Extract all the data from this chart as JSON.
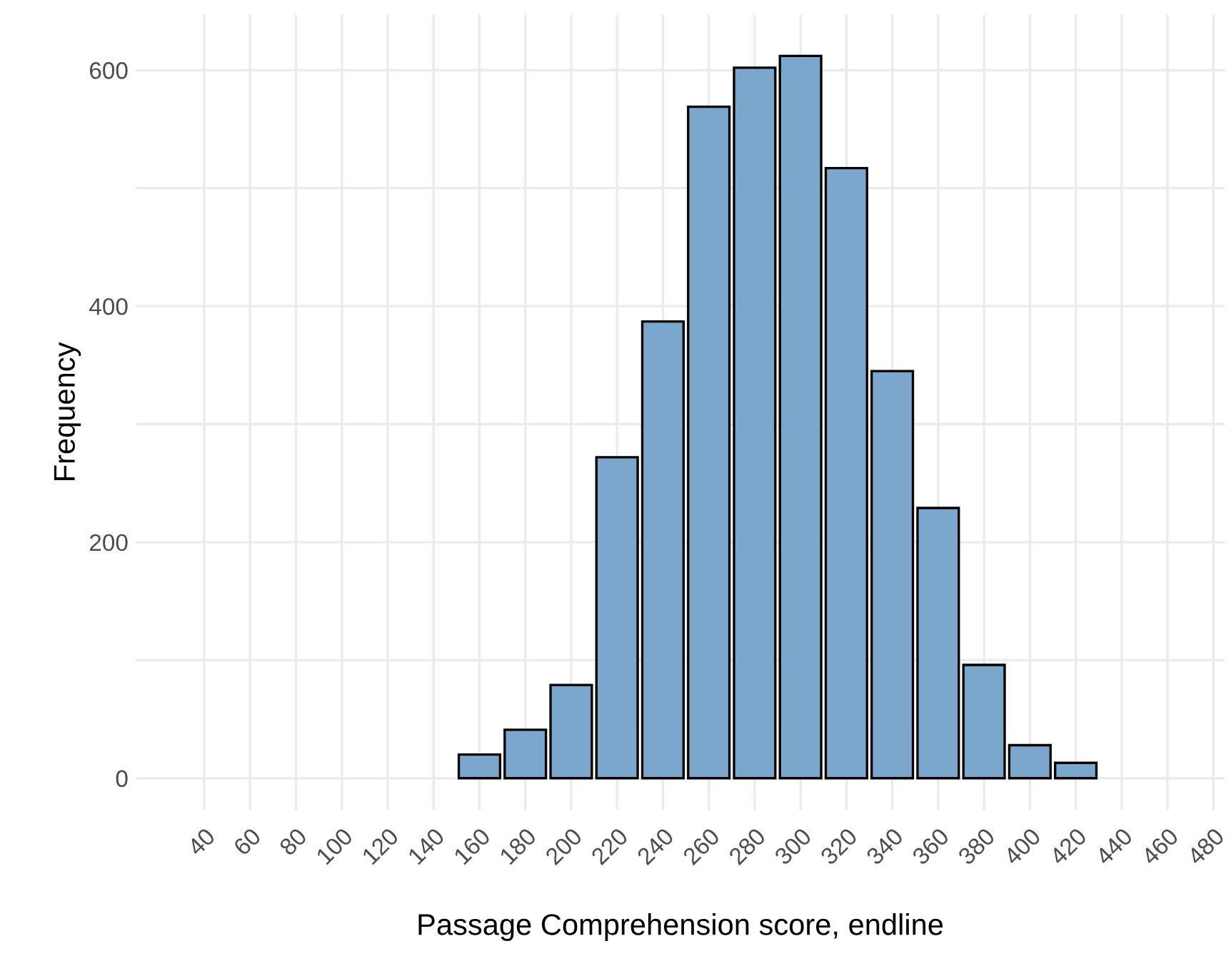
{
  "chart_data": {
    "type": "histogram",
    "xlabel": "Passage Comprehension score, endline",
    "ylabel": "Frequency",
    "bins": [
      150,
      170,
      190,
      210,
      230,
      250,
      270,
      290,
      310,
      330,
      350,
      370,
      390,
      410,
      430
    ],
    "values": [
      20,
      41,
      79,
      272,
      387,
      569,
      602,
      612,
      517,
      345,
      229,
      96,
      28,
      13
    ],
    "color": "#7ba7cc",
    "xlim": [
      10,
      485
    ],
    "xticks": [
      40,
      60,
      80,
      100,
      120,
      140,
      160,
      180,
      200,
      220,
      240,
      260,
      280,
      300,
      320,
      340,
      360,
      380,
      400,
      420,
      440,
      460,
      480
    ],
    "ylim": [
      -27,
      647
    ],
    "yticks": [
      0,
      {
        "value": 100,
        "label": null
      },
      200,
      {
        "value": 300,
        "label": null
      },
      400,
      {
        "value": 500,
        "label": null
      },
      600
    ],
    "grid": true
  }
}
